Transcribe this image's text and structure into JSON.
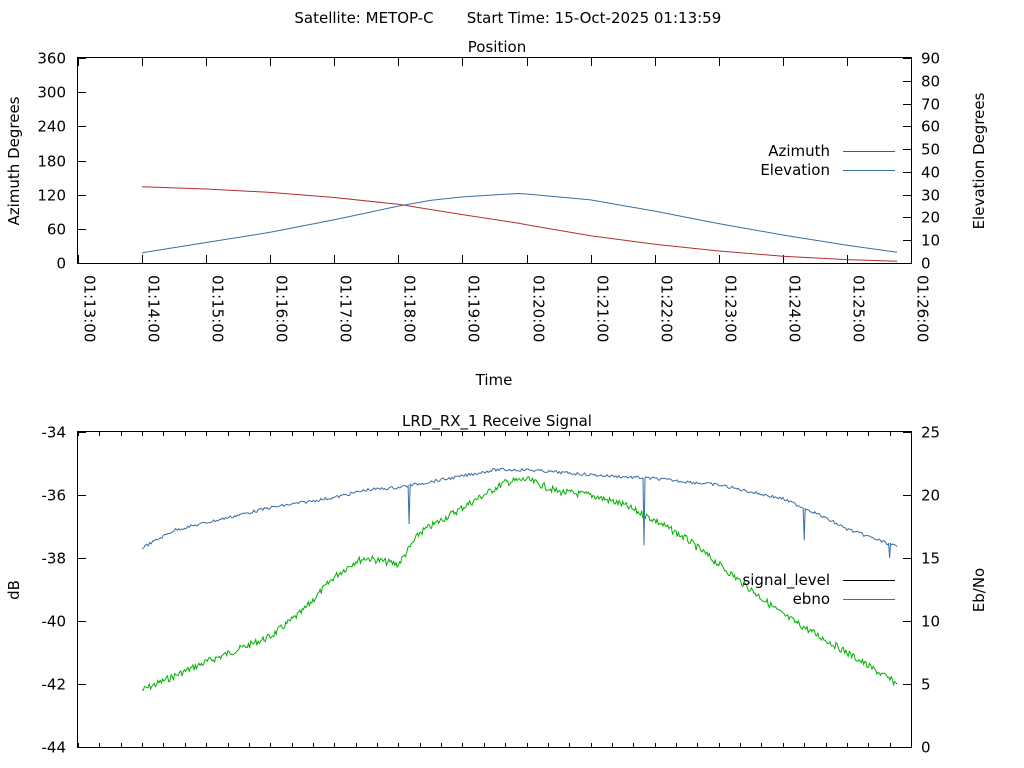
{
  "header": {
    "satellite_label": "Satellite: METOP-C",
    "start_time_label": "Start Time: 15-Oct-2025 01:13:59"
  },
  "chart_data": [
    {
      "id": "position",
      "type": "line",
      "title": "Position",
      "xlabel": "Time",
      "ylabel": "Azimuth Degrees",
      "y2label": "Elevation Degrees",
      "xlim": [
        "01:13:00",
        "01:26:00"
      ],
      "x_ticks": [
        "01:13:00",
        "01:14:00",
        "01:15:00",
        "01:16:00",
        "01:17:00",
        "01:18:00",
        "01:19:00",
        "01:20:00",
        "01:21:00",
        "01:22:00",
        "01:23:00",
        "01:24:00",
        "01:25:00",
        "01:26:00"
      ],
      "ylim": [
        0,
        360
      ],
      "y_ticks": [
        0,
        60,
        120,
        180,
        240,
        300,
        360
      ],
      "y2lim": [
        0,
        90
      ],
      "y2_ticks": [
        0,
        10,
        20,
        30,
        40,
        50,
        60,
        70,
        80,
        90
      ],
      "legend_position": "right",
      "x": [
        "01:14:00",
        "01:15:00",
        "01:16:00",
        "01:17:00",
        "01:18:00",
        "01:18:30",
        "01:19:00",
        "01:19:52",
        "01:20:00",
        "01:21:00",
        "01:22:00",
        "01:23:00",
        "01:24:00",
        "01:25:00",
        "01:25:47"
      ],
      "series": [
        {
          "name": "Azimuth",
          "axis": "left",
          "color": "#b03030",
          "values": [
            134,
            130,
            124,
            115,
            103,
            94,
            85,
            70,
            67,
            48,
            33,
            21,
            12,
            6,
            3
          ]
        },
        {
          "name": "Elevation",
          "axis": "right",
          "color": "#3a6ea5",
          "values": [
            4.5,
            9,
            13.5,
            19,
            25,
            27.5,
            29,
            30.5,
            30.3,
            27.7,
            22.8,
            17.3,
            12.3,
            7.8,
            4.7
          ]
        }
      ]
    },
    {
      "id": "receive",
      "type": "line",
      "title": "LRD_RX_1 Receive Signal",
      "xlabel": "",
      "ylabel": "dB",
      "y2label": "Eb/No",
      "xlim": [
        "01:13:00",
        "01:26:00"
      ],
      "ylim": [
        -44,
        -34
      ],
      "y_ticks": [
        -44,
        -42,
        -40,
        -38,
        -36,
        -34
      ],
      "y2lim": [
        0,
        25
      ],
      "y2_ticks": [
        0,
        5,
        10,
        15,
        20,
        25
      ],
      "legend_position": "right",
      "legend": [
        {
          "name": "signal_level",
          "color": "#000000"
        },
        {
          "name": "ebno",
          "color": "#3a6ea5"
        }
      ],
      "green_trace": {
        "color": "#00b000",
        "x": [
          "01:14:00",
          "01:15:00",
          "01:16:00",
          "01:16:30",
          "01:17:00",
          "01:17:20",
          "01:17:30",
          "01:18:00",
          "01:18:20",
          "01:18:50",
          "01:19:20",
          "01:19:40",
          "01:20:00",
          "01:20:30",
          "01:21:00",
          "01:21:30",
          "01:22:00",
          "01:22:30",
          "01:23:00",
          "01:24:00",
          "01:25:00",
          "01:25:47"
        ],
        "values": [
          -42.2,
          -41.3,
          -40.5,
          -39.7,
          -38.6,
          -38.1,
          -38.0,
          -38.2,
          -37.2,
          -36.6,
          -36.0,
          -35.6,
          -35.5,
          -35.9,
          -36.0,
          -36.3,
          -36.8,
          -37.4,
          -38.2,
          -39.8,
          -41.0,
          -42.0
        ]
      },
      "ebno": {
        "color": "#3a6ea5",
        "x": [
          "01:14:00",
          "01:14:30",
          "01:15:00",
          "01:16:00",
          "01:17:00",
          "01:17:30",
          "01:18:00",
          "01:19:00",
          "01:19:30",
          "01:20:00",
          "01:21:00",
          "01:22:00",
          "01:23:00",
          "01:24:00",
          "01:24:30",
          "01:25:00",
          "01:25:47"
        ],
        "values": [
          15.8,
          17.2,
          17.8,
          19.0,
          19.8,
          20.4,
          20.6,
          21.5,
          22.0,
          22.0,
          21.6,
          21.3,
          20.8,
          19.7,
          18.6,
          17.3,
          15.9
        ]
      },
      "ebno_dips": [
        {
          "x": "01:18:10",
          "value": 17.7
        },
        {
          "x": "01:21:50",
          "value": 16.0
        },
        {
          "x": "01:24:20",
          "value": 16.4
        },
        {
          "x": "01:25:40",
          "value": 15.0
        }
      ]
    }
  ]
}
